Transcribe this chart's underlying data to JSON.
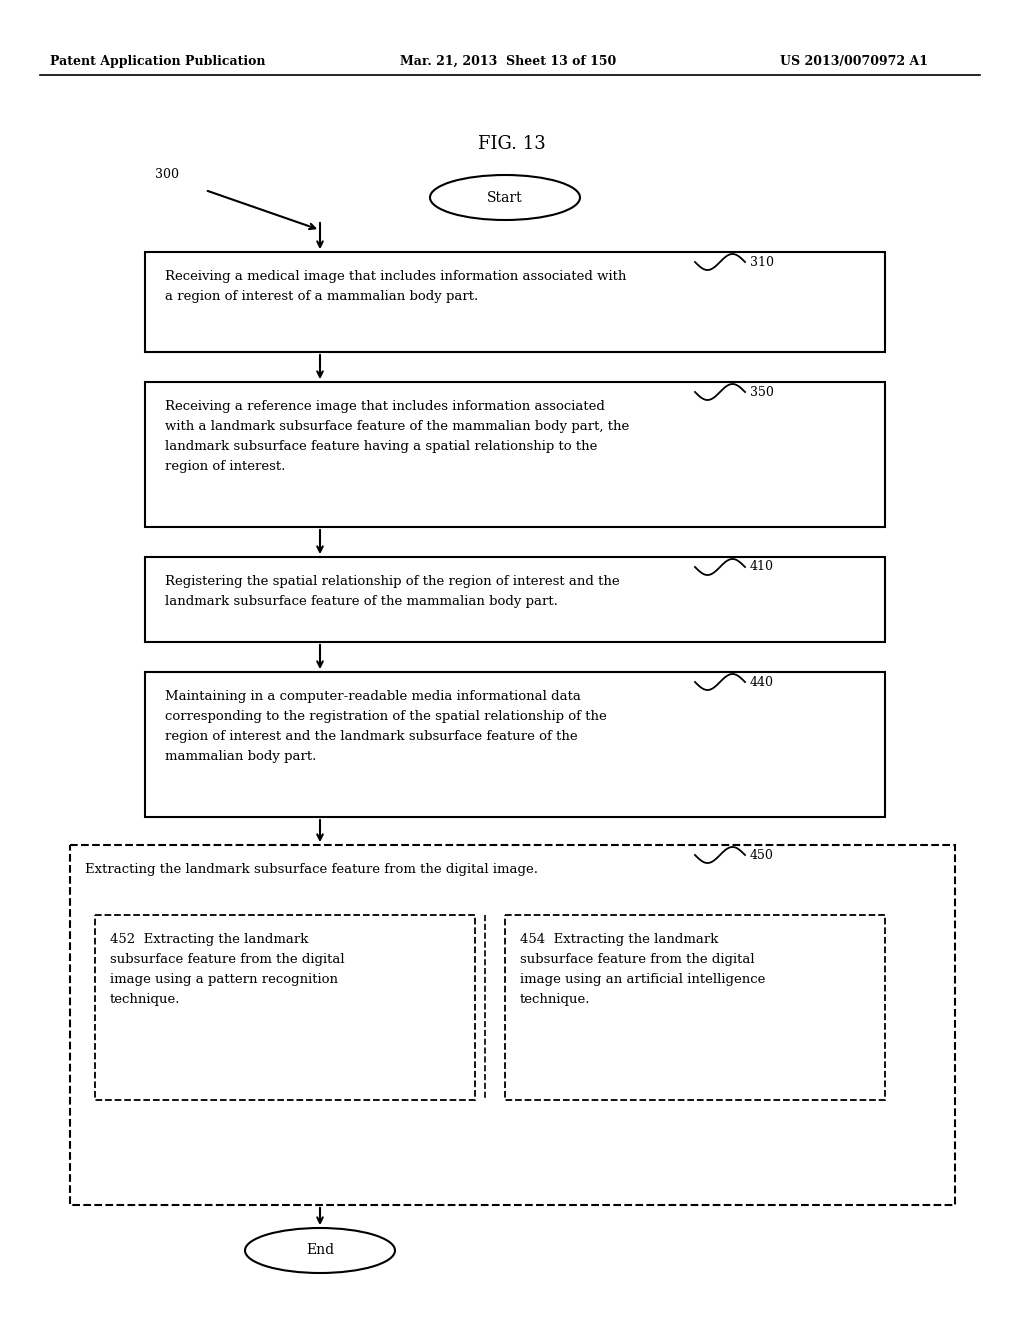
{
  "header_left": "Patent Application Publication",
  "header_mid": "Mar. 21, 2013  Sheet 13 of 150",
  "header_right": "US 2013/0070972 A1",
  "fig_title": "FIG. 13",
  "label_300": "300",
  "label_310": "310",
  "label_350": "350",
  "label_410": "410",
  "label_440": "440",
  "label_450": "450",
  "label_452": "452",
  "label_454": "454",
  "start_text": "Start",
  "end_text": "End",
  "box310_text": "Receiving a medical image that includes information associated with\na region of interest of a mammalian body part.",
  "box350_text": "Receiving a reference image that includes information associated\nwith a landmark subsurface feature of the mammalian body part, the\nlandmark subsurface feature having a spatial relationship to the\nregion of interest.",
  "box410_text": "Registering the spatial relationship of the region of interest and the\nlandmark subsurface feature of the mammalian body part.",
  "box440_text": "Maintaining in a computer-readable media informational data\ncorresponding to the registration of the spatial relationship of the\nregion of interest and the landmark subsurface feature of the\nmammalian body part.",
  "box450_text": "Extracting the landmark subsurface feature from the digital image.",
  "box452_text": "452  Extracting the landmark\nsubsurface feature from the digital\nimage using a pattern recognition\ntechnique.",
  "box454_text": "454  Extracting the landmark\nsubsurface feature from the digital\nimage using an artificial intelligence\ntechnique.",
  "bg_color": "#ffffff",
  "box_color": "#000000",
  "text_color": "#000000"
}
